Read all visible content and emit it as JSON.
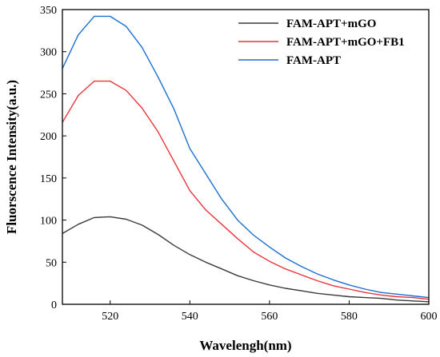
{
  "chart_data": {
    "type": "line",
    "xlabel": "Wavelengh(nm)",
    "ylabel": "Fluorscence Intensity(a.u.)",
    "xlim": [
      508,
      600
    ],
    "ylim": [
      0,
      350
    ],
    "x_ticks": [
      520,
      540,
      560,
      580,
      600
    ],
    "y_ticks": [
      0,
      50,
      100,
      150,
      200,
      250,
      300,
      350
    ],
    "grid": false,
    "legend_position": "top-right",
    "series": [
      {
        "name": "FAM-APT+mGO",
        "color": "#3a3a3a",
        "x": [
          508,
          512,
          516,
          520,
          524,
          528,
          532,
          536,
          540,
          544,
          548,
          552,
          556,
          560,
          564,
          568,
          572,
          576,
          580,
          584,
          588,
          592,
          596,
          600
        ],
        "y": [
          84,
          95,
          103,
          104,
          101,
          94,
          83,
          70,
          59,
          50,
          42,
          34,
          28,
          23,
          19,
          16,
          13,
          11,
          9,
          8,
          7,
          5,
          4,
          3
        ]
      },
      {
        "name": "FAM-APT+mGO+FB1",
        "color": "#e8353a",
        "x": [
          508,
          512,
          516,
          520,
          524,
          528,
          532,
          536,
          540,
          544,
          548,
          552,
          556,
          560,
          564,
          568,
          572,
          576,
          580,
          584,
          588,
          592,
          596,
          600
        ],
        "y": [
          216,
          248,
          265,
          265,
          254,
          233,
          205,
          170,
          135,
          112,
          95,
          78,
          62,
          51,
          42,
          35,
          28,
          22,
          18,
          14,
          11,
          9,
          8,
          6
        ]
      },
      {
        "name": "FAM-APT",
        "color": "#1a6fd0",
        "x": [
          508,
          512,
          516,
          520,
          524,
          528,
          532,
          536,
          540,
          544,
          548,
          552,
          556,
          560,
          564,
          568,
          572,
          576,
          580,
          584,
          588,
          592,
          596,
          600
        ],
        "y": [
          280,
          320,
          342,
          342,
          330,
          305,
          270,
          232,
          185,
          155,
          125,
          100,
          82,
          68,
          55,
          45,
          36,
          29,
          23,
          18,
          14,
          12,
          10,
          8
        ]
      }
    ]
  }
}
